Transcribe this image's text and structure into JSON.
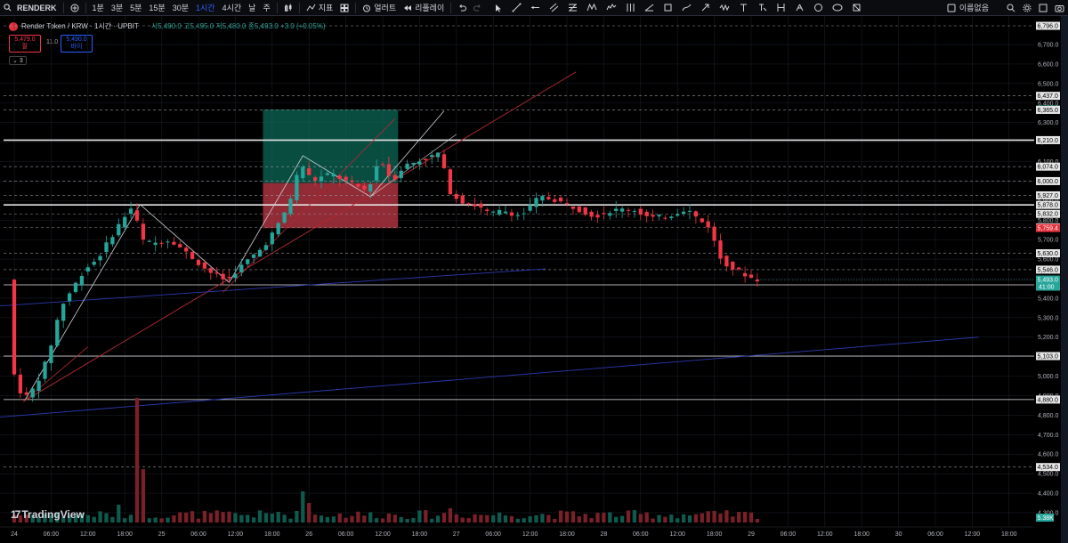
{
  "toolbar": {
    "symbol": "RENDERK",
    "intervals": [
      "1분",
      "3분",
      "5분",
      "15분",
      "30분",
      "1시간",
      "4시간",
      "날",
      "주"
    ],
    "active_interval": "1시간",
    "indicators_label": "지표",
    "alert_label": "얼러트",
    "replay_label": "리플레이",
    "layout_label": "이름없음"
  },
  "legend": {
    "title": "Render Token / KRW · 1시간 · UPBIT",
    "ohlc": "시5,490.0 고5,495.0 저5,480.0 종5,493.0 +3.0 (+0.05%)",
    "sell_price": "5,479.0",
    "sell_label": "팔",
    "spread": "11.0",
    "buy_price": "5,490.0",
    "buy_label": "바이",
    "indicator_count": "3"
  },
  "brand": {
    "name": "TradingView"
  },
  "chart_data": {
    "type": "candlestick",
    "symbol": "Render Token / KRW",
    "interval": "1시간",
    "exchange": "UPBIT",
    "last_price": 5493.0,
    "last_price_label": "5,493.0",
    "countdown": "41:00",
    "ylim": [
      4200,
      6850
    ],
    "y_ticks": [
      4300,
      4400,
      4500,
      4600,
      4700,
      4800,
      4900,
      5000,
      5100,
      5200,
      5300,
      5400,
      5500,
      5600,
      5700,
      5800,
      5900,
      6000,
      6100,
      6200,
      6300,
      6400,
      6500,
      6600,
      6700
    ],
    "y_tick_labels": [
      "4,300.0",
      "4,400.0",
      "4,500.0",
      "4,600.0",
      "4,700.0",
      "4,800.0",
      "4,900.0",
      "5,000.0",
      "5,100.0",
      "5,200.0",
      "5,300.0",
      "5,400.0",
      "5,500.0",
      "5,600.0",
      "5,700.0",
      "5,800.0",
      "5,900.0",
      "6,000.0",
      "6,100.0",
      "6,200.0",
      "6,300.0",
      "6,400.0",
      "6,500.0",
      "6,600.0",
      "6,700.0"
    ],
    "x_ticks": [
      "24",
      "06:00",
      "12:00",
      "18:00",
      "25",
      "06:00",
      "12:00",
      "18:00",
      "26",
      "06:00",
      "12:00",
      "18:00",
      "27",
      "06:00",
      "12:00",
      "18:00",
      "28",
      "06:00",
      "12:00",
      "18:00",
      "29",
      "06:00",
      "12:00",
      "18:00",
      "30",
      "06:00",
      "12:00",
      "18:00"
    ],
    "horizontal_levels": [
      {
        "price": 6796.0,
        "label": "6,796.0",
        "style": "dashed"
      },
      {
        "price": 6437.0,
        "label": "6,437.0",
        "style": "dashed"
      },
      {
        "price": 6367.4,
        "label": "6,367.4",
        "style": "marker-green"
      },
      {
        "price": 6365.0,
        "label": "6,365.0",
        "style": "dashed"
      },
      {
        "price": 6210.0,
        "label": "6,210.0",
        "style": "solid"
      },
      {
        "price": 6074.0,
        "label": "6,074.0",
        "style": "dashed"
      },
      {
        "price": 6000.0,
        "label": "6,000.0",
        "style": "dashed"
      },
      {
        "price": 5927.0,
        "label": "5,927.0",
        "style": "dashed"
      },
      {
        "price": 5878.0,
        "label": "5,878.0",
        "style": "solid"
      },
      {
        "price": 5832.0,
        "label": "5,832.0",
        "style": "dashed"
      },
      {
        "price": 5763.0,
        "label": "5,763.0",
        "style": "dashed"
      },
      {
        "price": 5759.4,
        "label": "5,759.4",
        "style": "marker-red"
      },
      {
        "price": 5630.0,
        "label": "5,630.0",
        "style": "dashed"
      },
      {
        "price": 5546.0,
        "label": "5,546.0",
        "style": "dashed"
      },
      {
        "price": 5468.0,
        "label": "5,468.0",
        "style": "solid"
      },
      {
        "price": 5103.0,
        "label": "5,103.0",
        "style": "solid"
      },
      {
        "price": 4880.0,
        "label": "4,880.0",
        "style": "solid"
      },
      {
        "price": 4534.0,
        "label": "4,534.0",
        "style": "dashed"
      }
    ],
    "volume_label": "5.38K",
    "colors": {
      "up": "#26a69a",
      "down": "#f23645",
      "bg": "#000000",
      "grid": "#1e222d",
      "trend_red": "#b22833",
      "trend_blue": "#2a3bb0"
    }
  }
}
